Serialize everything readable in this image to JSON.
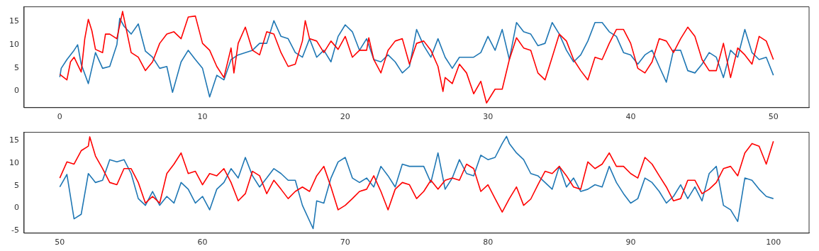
{
  "chart_data": [
    {
      "type": "line",
      "xlim": [
        -2.5,
        52.5
      ],
      "ylim": [
        -3.6,
        18.2
      ],
      "xticks": [
        0,
        10,
        20,
        30,
        40,
        50
      ],
      "yticks": [
        0,
        5,
        10,
        15
      ],
      "grid": false,
      "legend": false,
      "marker": "none",
      "line_style": "solid",
      "series": [
        {
          "color": "#ff0000",
          "x": [
            0,
            0.5,
            0.75,
            1,
            1.5,
            1.75,
            2,
            2.25,
            2.5,
            3,
            3.2,
            3.5,
            4,
            4.4,
            5,
            5.5,
            6,
            6.5,
            7,
            7.5,
            8,
            8.5,
            9,
            9.5,
            10,
            10.5,
            11,
            11.5,
            12,
            12.2,
            12.5,
            13,
            13.5,
            14,
            14.5,
            15,
            15.5,
            16,
            16.5,
            17,
            17.2,
            17.5,
            18,
            18.5,
            19,
            19.5,
            20,
            20.5,
            21,
            21.5,
            21.65,
            22,
            22.5,
            23,
            23.5,
            24,
            24.5,
            25,
            25.5,
            26,
            26.5,
            26.85,
            27,
            27.5,
            28,
            28.5,
            29,
            29.5,
            29.9,
            30,
            30.5,
            31,
            31.5,
            32,
            32.5,
            33,
            33.5,
            34,
            34.5,
            35,
            35.5,
            36,
            36.5,
            37,
            37.5,
            38,
            38.5,
            39,
            39.5,
            40,
            40.5,
            41,
            41.5,
            42,
            42.5,
            43,
            43.5,
            44,
            44.5,
            45,
            45.5,
            46,
            46.5,
            47,
            47.5,
            48,
            48.5,
            49,
            49.5,
            50
          ],
          "values": [
            3.6,
            2.4,
            6.3,
            7.3,
            4.1,
            11.3,
            15.5,
            13,
            9,
            8.3,
            12.3,
            12.3,
            11.3,
            17.2,
            8.3,
            7.3,
            4.4,
            6.3,
            10.3,
            12.3,
            12.8,
            11.3,
            16,
            16.2,
            10.3,
            8.8,
            5.3,
            2.9,
            9.3,
            3.9,
            10.3,
            13.8,
            8.8,
            7.8,
            12.8,
            12.3,
            8.3,
            5.3,
            5.8,
            10.8,
            15.2,
            11.3,
            10.8,
            8.3,
            10.8,
            9,
            11.8,
            7.3,
            8.8,
            8.8,
            11.5,
            6.8,
            3.9,
            8.8,
            10.8,
            11.3,
            5.8,
            10.3,
            10.8,
            8.8,
            5.3,
            -0.1,
            2.9,
            1.6,
            5.8,
            3.9,
            -0.6,
            2.1,
            -2.6,
            -2.1,
            0.4,
            0.4,
            6.8,
            11.5,
            9.3,
            8.8,
            3.9,
            2.4,
            7.3,
            12.3,
            10.8,
            6.8,
            4.4,
            2.4,
            7.3,
            6.8,
            10.3,
            13.3,
            13.3,
            10.3,
            4.9,
            3.9,
            6.3,
            11.3,
            10.8,
            8.3,
            11.3,
            13.8,
            11.8,
            6.8,
            4.4,
            4.4,
            10.3,
            2.9,
            9.3,
            7.8,
            5.8,
            11.8,
            10.8,
            6.8
          ]
        },
        {
          "color": "#1f77b4",
          "x": [
            0,
            0.1,
            0.5,
            1,
            1.25,
            1.5,
            2,
            2.5,
            3,
            3.5,
            4,
            4.2,
            4.5,
            5,
            5.5,
            6,
            6.5,
            7,
            7.5,
            7.9,
            8.5,
            9,
            9.5,
            10,
            10.5,
            11,
            11.5,
            12,
            12.5,
            13,
            13.5,
            14,
            14.5,
            15,
            15.5,
            16,
            16.5,
            17,
            17.5,
            18,
            18.5,
            19,
            19.5,
            20,
            20.5,
            21,
            21.5,
            22,
            22.5,
            23,
            23.5,
            24,
            24.5,
            25,
            25.5,
            26,
            26.5,
            27,
            27.5,
            28,
            28.5,
            29,
            29.5,
            30,
            30.5,
            31,
            31.5,
            32,
            32.5,
            33,
            33.5,
            34,
            34.5,
            35,
            35.5,
            36,
            36.5,
            37,
            37.5,
            38,
            38.5,
            39,
            39.5,
            40,
            40.5,
            41,
            41.5,
            42,
            42.5,
            43,
            43.5,
            44,
            44.5,
            45,
            45.5,
            46,
            46.5,
            47,
            47.5,
            48,
            48.5,
            49,
            49.5,
            50
          ],
          "values": [
            3.0,
            4.9,
            6.8,
            8.8,
            10,
            5.8,
            1.6,
            8.3,
            4.9,
            5.3,
            10,
            15.7,
            14,
            12.3,
            14.5,
            8.6,
            7.3,
            4.9,
            5.3,
            -0.3,
            6.3,
            8.8,
            6.8,
            4.9,
            -1.3,
            3.4,
            2.4,
            6.8,
            7.8,
            8.3,
            8.8,
            10.3,
            10.3,
            15.2,
            11.8,
            11.3,
            8.3,
            7.3,
            11.3,
            7.3,
            8.8,
            6.3,
            11.8,
            14.3,
            12.8,
            8.8,
            11.3,
            6.8,
            6.3,
            7.8,
            6.3,
            3.9,
            5.3,
            13.3,
            9.8,
            7.3,
            11.3,
            7.3,
            4.9,
            7.3,
            7.3,
            7.3,
            8.3,
            11.8,
            8.8,
            13.3,
            6.8,
            14.8,
            12.8,
            12.3,
            9.8,
            10.3,
            14.8,
            12.3,
            8.8,
            6.3,
            7.8,
            10.8,
            14.8,
            14.8,
            12.8,
            11.8,
            8.3,
            7.8,
            5.8,
            7.8,
            8.8,
            5.3,
            1.9,
            8.8,
            8.8,
            4.4,
            3.9,
            5.8,
            8.3,
            7.3,
            2.9,
            8.8,
            7.3,
            13.3,
            8.3,
            6.8,
            7.3,
            3.4
          ]
        }
      ]
    },
    {
      "type": "line",
      "xlim": [
        47.5,
        102.5
      ],
      "ylim": [
        -5.6,
        16.9
      ],
      "xticks": [
        50,
        60,
        70,
        80,
        90,
        100
      ],
      "yticks": [
        -5,
        0,
        5,
        10,
        15
      ],
      "grid": false,
      "legend": false,
      "marker": "none",
      "line_style": "solid",
      "series": [
        {
          "color": "#ff0000",
          "x": [
            50,
            50.5,
            51,
            51.5,
            52,
            52.1,
            52.5,
            53,
            53.5,
            54,
            54.5,
            55,
            55.5,
            56,
            56.5,
            57,
            57.5,
            58,
            58.5,
            59,
            59.5,
            60,
            60.5,
            61,
            61.5,
            62,
            62.5,
            63,
            63.5,
            64,
            64.5,
            65,
            65.5,
            66,
            66.5,
            67,
            67.5,
            68,
            68.5,
            69,
            69.5,
            70,
            70.5,
            71,
            71.5,
            72,
            72.5,
            73,
            73.5,
            74,
            74.5,
            75,
            75.5,
            76,
            76.5,
            77,
            77.5,
            78,
            78.5,
            79,
            79.5,
            80,
            80.5,
            81,
            81.5,
            82,
            82.5,
            83,
            83.5,
            84,
            84.5,
            85,
            85.5,
            86,
            86.5,
            87,
            87.5,
            88,
            88.5,
            89,
            89.5,
            90,
            90.5,
            91,
            91.5,
            92,
            92.5,
            93,
            93.5,
            94,
            94.5,
            95,
            95.5,
            96,
            96.5,
            97,
            97.5,
            98,
            98.5,
            99,
            99.5,
            100
          ],
          "values": [
            6.7,
            10.3,
            9.8,
            12.8,
            13.8,
            15.9,
            11.6,
            8.8,
            5.7,
            5.2,
            8.8,
            8.8,
            5.7,
            1.1,
            2.6,
            1.1,
            7.7,
            9.8,
            12.3,
            7.7,
            8.2,
            5.2,
            7.7,
            7.2,
            8.8,
            5.7,
            1.6,
            3.2,
            8.2,
            7.2,
            3.2,
            6.2,
            4.2,
            2.1,
            3.7,
            4.7,
            3.7,
            7.2,
            9.3,
            4.7,
            -0.4,
            0.6,
            2.1,
            3.7,
            4.2,
            7.2,
            3.7,
            -0.4,
            4.2,
            5.7,
            5.2,
            2.1,
            3.7,
            6.2,
            4.2,
            6.2,
            6.7,
            6.2,
            9.8,
            8.8,
            3.7,
            5.2,
            2.1,
            -0.9,
            2.1,
            4.7,
            0.6,
            2,
            5.2,
            8.2,
            7.7,
            9.3,
            7.2,
            4.7,
            4.2,
            10.3,
            8.8,
            9.8,
            12.3,
            9.3,
            9.3,
            7.7,
            6.7,
            11.3,
            9.8,
            7.2,
            4.7,
            1.6,
            2.1,
            6.2,
            6.2,
            3.2,
            4.2,
            5.7,
            8.8,
            9.3,
            7.2,
            12.3,
            14.4,
            13.8,
            9.8,
            14.9
          ]
        },
        {
          "color": "#1f77b4",
          "x": [
            50,
            50.5,
            51,
            51.5,
            52,
            52.5,
            53,
            53.5,
            54,
            54.5,
            55,
            55.5,
            56,
            56.5,
            57,
            57.5,
            58,
            58.5,
            59,
            59.5,
            60,
            60.5,
            61,
            61.5,
            62,
            62.5,
            63,
            63.5,
            64,
            64.5,
            65,
            65.5,
            66,
            66.5,
            67,
            67.75,
            68,
            68.5,
            69,
            69.5,
            70,
            70.5,
            71,
            71.5,
            72,
            72.5,
            73,
            73.5,
            74,
            74.5,
            75,
            75.5,
            76,
            76.5,
            77,
            77.5,
            78,
            78.5,
            79,
            79.5,
            80,
            80.5,
            81,
            81.3,
            81.5,
            82,
            82.5,
            83,
            83.5,
            84,
            84.5,
            85,
            85.5,
            86,
            86.5,
            87,
            87.5,
            88,
            88.5,
            89,
            89.5,
            90,
            90.5,
            91,
            91.5,
            92,
            92.5,
            93,
            93.5,
            94,
            94.5,
            95,
            95.5,
            96,
            96.5,
            97,
            97.5,
            98,
            98.5,
            99,
            99.5,
            100
          ],
          "values": [
            4.7,
            7.5,
            -2.4,
            -1.4,
            7.7,
            5.7,
            6.2,
            10.8,
            10.3,
            10.8,
            7.7,
            2.1,
            0.6,
            3.7,
            0.6,
            2.6,
            1.1,
            5.7,
            4.2,
            1.1,
            2.6,
            -0.4,
            4.2,
            5.7,
            8.8,
            6.7,
            11.3,
            7.2,
            4.7,
            6.7,
            8.8,
            7.7,
            6.2,
            6.2,
            0.6,
            -4.6,
            1.6,
            1.1,
            6.7,
            10.3,
            11.3,
            6.7,
            5.7,
            6.7,
            4.7,
            9.3,
            7.2,
            4.7,
            9.8,
            9.3,
            9.3,
            9.3,
            5.7,
            12.3,
            4.2,
            6.7,
            10.8,
            7.7,
            7.2,
            11.8,
            10.8,
            11.3,
            14.4,
            16,
            14.4,
            12.3,
            10.8,
            7.7,
            7.2,
            5.7,
            4.2,
            9.3,
            4.7,
            6.7,
            3.7,
            4.2,
            5.2,
            4.7,
            9.3,
            5.7,
            3.2,
            1.1,
            2.1,
            6.7,
            5.7,
            3.7,
            1.1,
            2.6,
            5.2,
            2.1,
            4.7,
            1.6,
            7.7,
            9.3,
            0.6,
            -0.4,
            -3.0,
            6.7,
            6.2,
            4.2,
            2.6,
            2.1
          ]
        }
      ]
    }
  ]
}
